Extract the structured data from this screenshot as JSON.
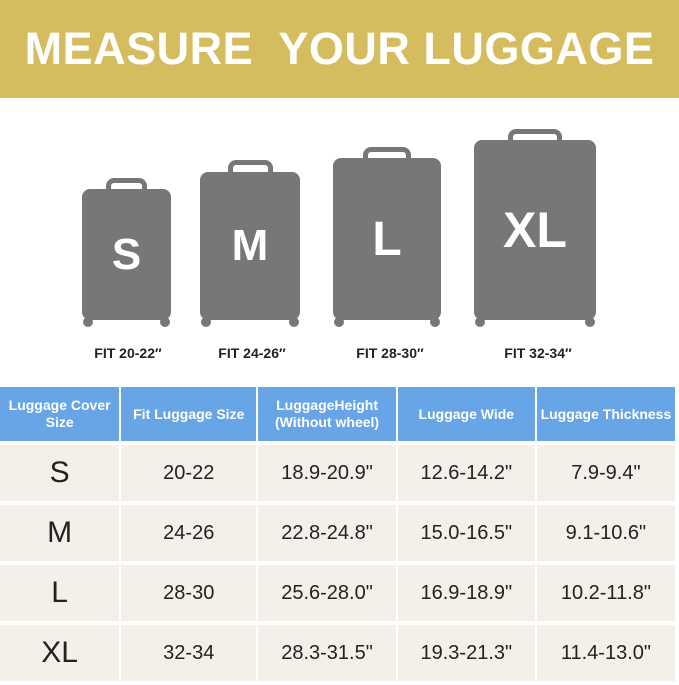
{
  "title": "MEASURE  YOUR LUGGAGE",
  "suitcases": [
    {
      "letter": "S",
      "fit": "FIT 20-22″"
    },
    {
      "letter": "M",
      "fit": "FIT 24-26″"
    },
    {
      "letter": "L",
      "fit": "FIT 28-30″"
    },
    {
      "letter": "XL",
      "fit": "FIT 32-34″"
    }
  ],
  "table": {
    "headers": [
      "Luggage Cover Size",
      "Fit Luggage Size",
      "LuggageHeight (Without wheel)",
      "Luggage Wide",
      "Luggage Thickness"
    ],
    "rows": [
      [
        "S",
        "20-22",
        "18.9-20.9\"",
        "12.6-14.2\"",
        "7.9-9.4\""
      ],
      [
        "M",
        "24-26",
        "22.8-24.8\"",
        "15.0-16.5\"",
        "9.1-10.6\""
      ],
      [
        "L",
        "28-30",
        "25.6-28.0\"",
        "16.9-18.9\"",
        "10.2-11.8\""
      ],
      [
        "XL",
        "32-34",
        "28.3-31.5\"",
        "19.3-21.3\"",
        "11.4-13.0\""
      ]
    ]
  },
  "colors": {
    "banner": "#d5bd5f",
    "header": "#68a5e7",
    "suitcase": "#777777",
    "row": "#f3efe9"
  }
}
